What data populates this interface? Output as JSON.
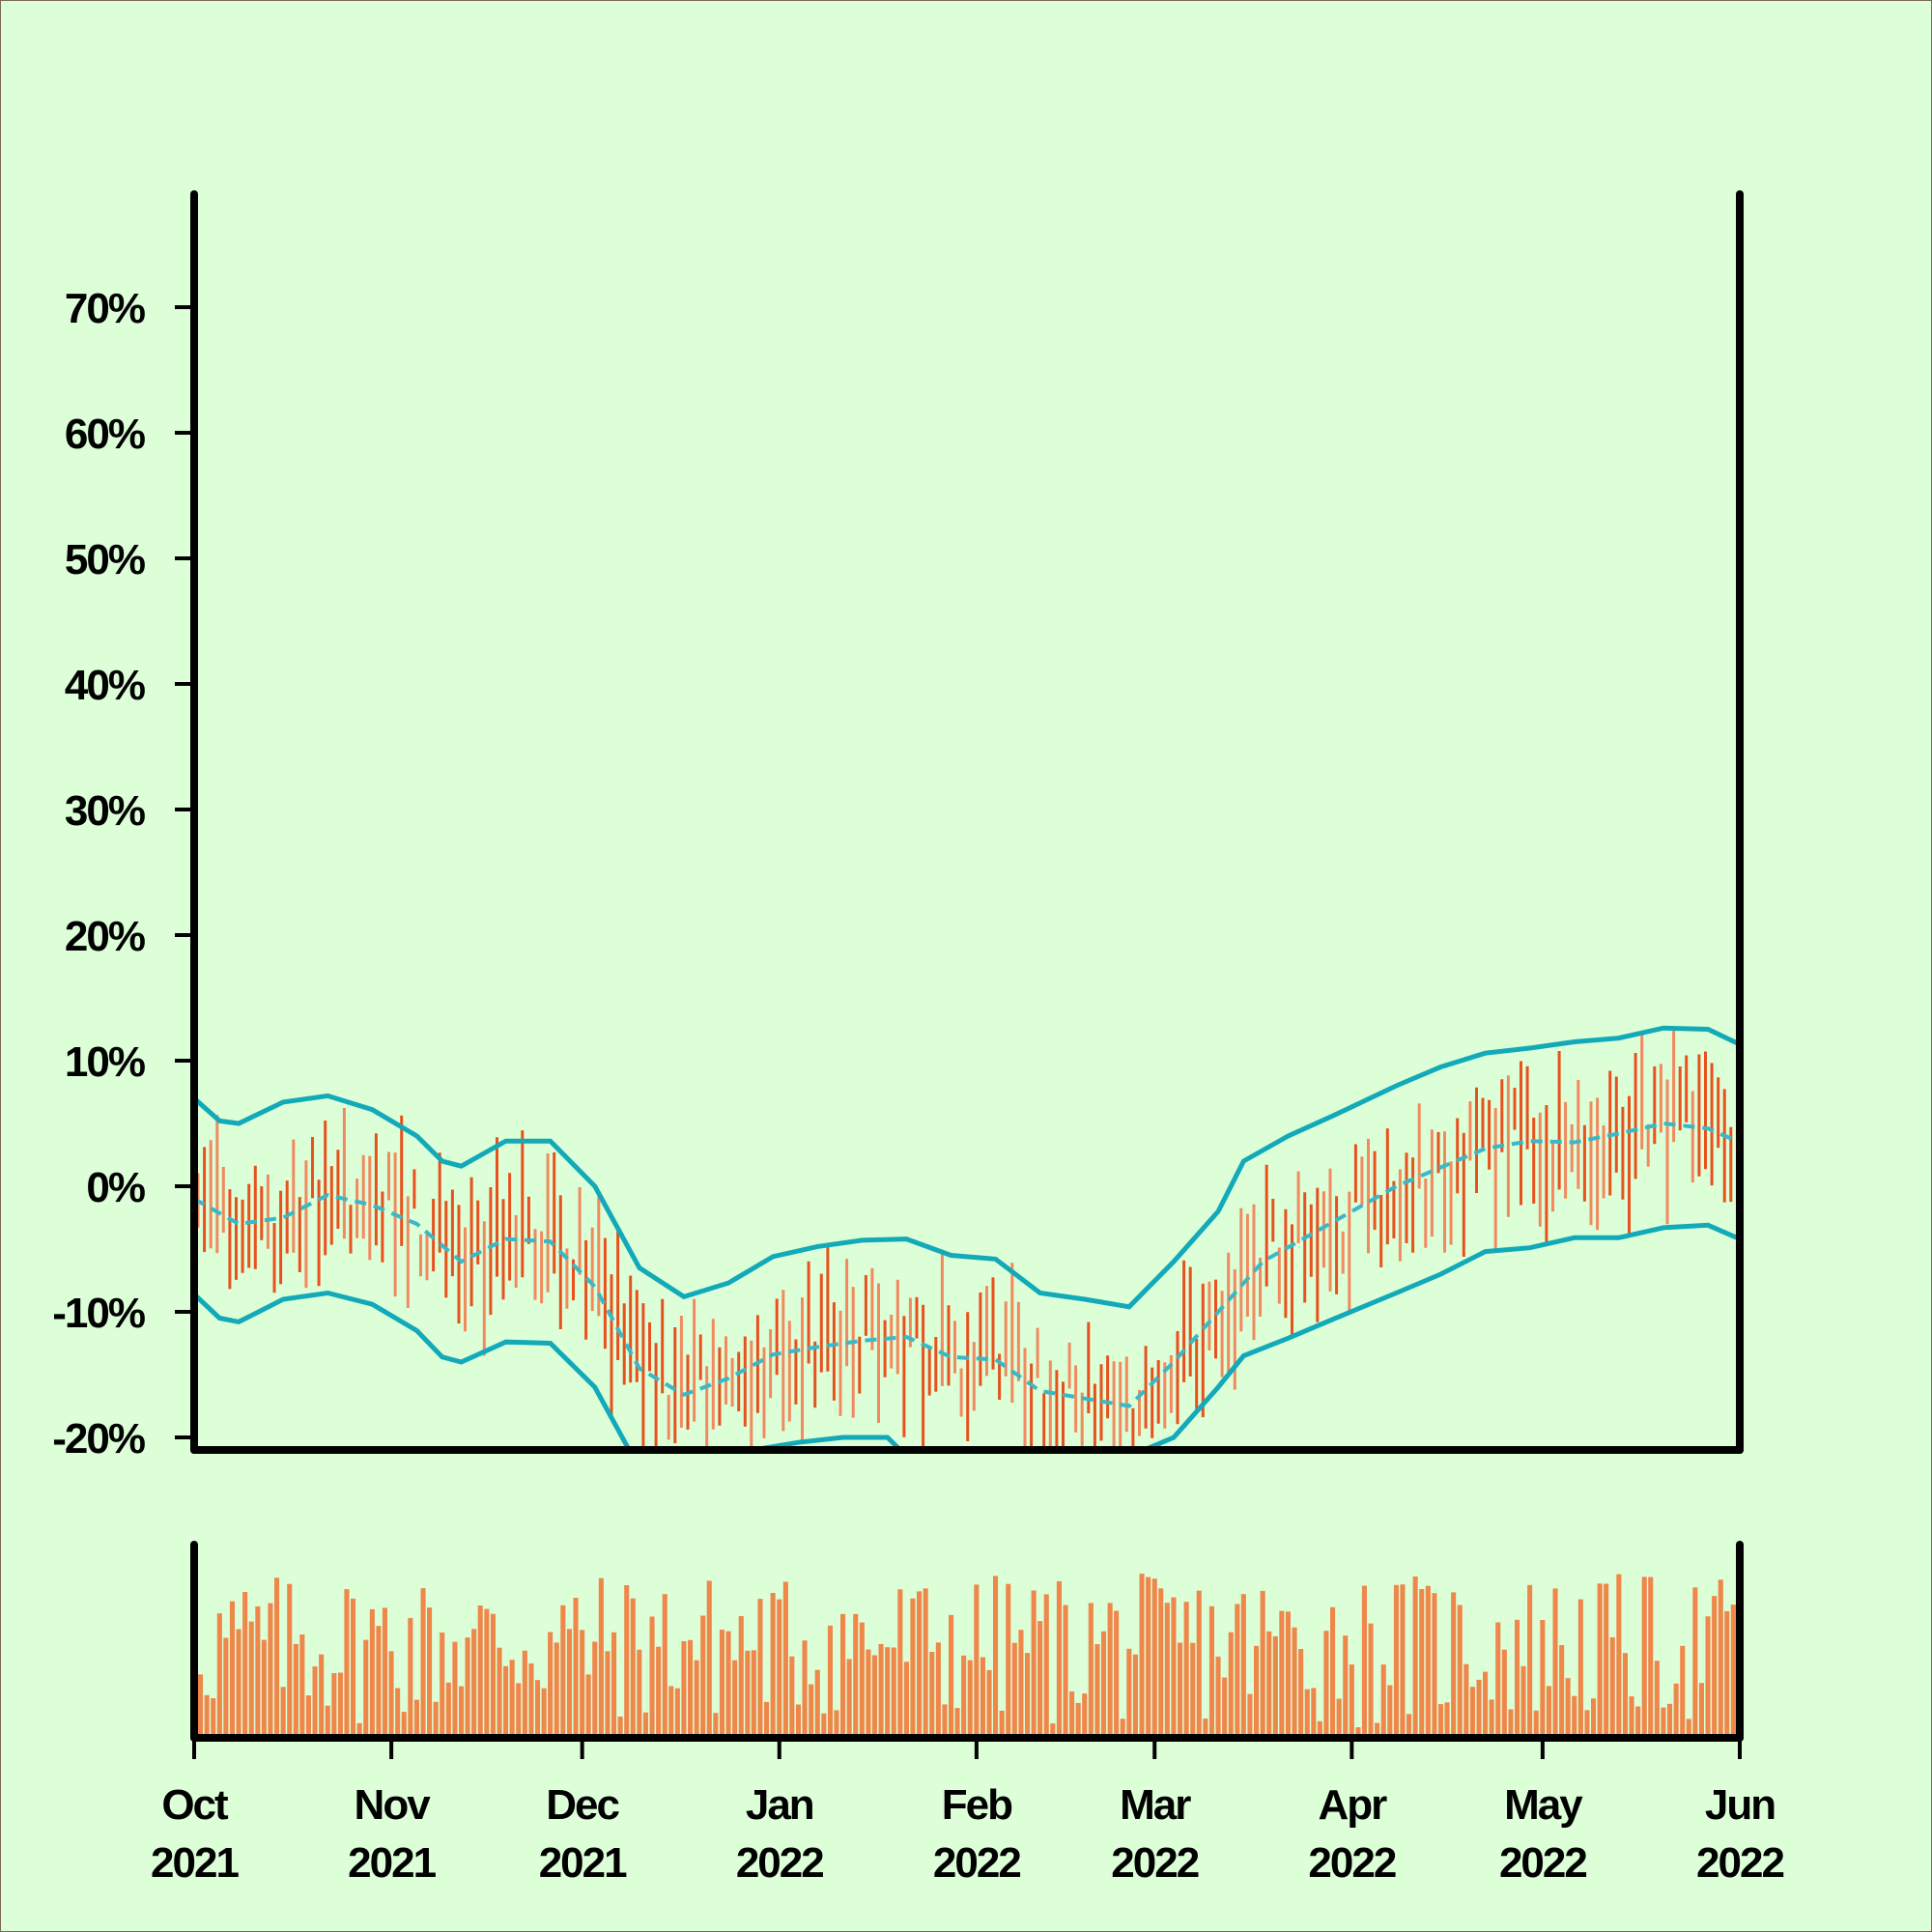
{
  "colors": {
    "background": "#dcffd8",
    "frame": "#7a6a55",
    "axis": "#000000",
    "band": "#12a9b8",
    "mid": "#3ab8c6",
    "candle_dark": "#e8511e",
    "candle_light": "#f2895f",
    "volume": "#ef864a"
  },
  "chart_data": {
    "type": "candlestick",
    "title": "",
    "xlabel": "",
    "ylabel": "",
    "ylim": [
      -21,
      80
    ],
    "yticks": [
      -20,
      -10,
      0,
      10,
      20,
      30,
      40,
      50,
      60,
      70
    ],
    "ytick_labels": [
      "-20%",
      "-10%",
      "0%",
      "10%",
      "20%",
      "30%",
      "40%",
      "50%",
      "60%",
      "70%"
    ],
    "xlim": [
      "2021-10-01",
      "2022-06-01"
    ],
    "xticks": [
      {
        "date": "2021-10-01",
        "line1": "Oct",
        "line2": "2021"
      },
      {
        "date": "2021-11-01",
        "line1": "Nov",
        "line2": "2021"
      },
      {
        "date": "2021-12-01",
        "line1": "Dec",
        "line2": "2021"
      },
      {
        "date": "2022-01-01",
        "line1": "Jan",
        "line2": "2022"
      },
      {
        "date": "2022-02-01",
        "line1": "Feb",
        "line2": "2022"
      },
      {
        "date": "2022-03-01",
        "line1": "Mar",
        "line2": "2022"
      },
      {
        "date": "2022-04-01",
        "line1": "Apr",
        "line2": "2022"
      },
      {
        "date": "2022-05-01",
        "line1": "May",
        "line2": "2022"
      },
      {
        "date": "2022-06-01",
        "line1": "Jun",
        "line2": "2022"
      }
    ],
    "mid_series": {
      "style": "dashed",
      "points": [
        [
          "2021-10-01",
          -1
        ],
        [
          "2021-10-08",
          -3
        ],
        [
          "2021-10-15",
          -2.5
        ],
        [
          "2021-10-22",
          -0.7
        ],
        [
          "2021-10-29",
          -1.5
        ],
        [
          "2021-11-05",
          -3
        ],
        [
          "2021-11-12",
          -6
        ],
        [
          "2021-11-19",
          -4.2
        ],
        [
          "2021-11-26",
          -4.4
        ],
        [
          "2021-12-03",
          -8
        ],
        [
          "2021-12-10",
          -14.5
        ],
        [
          "2021-12-17",
          -16.6
        ],
        [
          "2021-12-24",
          -15.3
        ],
        [
          "2021-12-31",
          -13.4
        ],
        [
          "2022-01-07",
          -12.8
        ],
        [
          "2022-01-14",
          -12.3
        ],
        [
          "2022-01-21",
          -12
        ],
        [
          "2022-01-28",
          -13.6
        ],
        [
          "2022-02-04",
          -13.8
        ],
        [
          "2022-02-11",
          -16.3
        ],
        [
          "2022-02-18",
          -16.9
        ],
        [
          "2022-02-25",
          -17.5
        ],
        [
          "2022-03-04",
          -14
        ],
        [
          "2022-03-11",
          -10
        ],
        [
          "2022-03-18",
          -6
        ],
        [
          "2022-03-25",
          -4
        ],
        [
          "2022-04-01",
          -2
        ],
        [
          "2022-04-08",
          0
        ],
        [
          "2022-04-15",
          1.5
        ],
        [
          "2022-04-22",
          3
        ],
        [
          "2022-04-29",
          3.6
        ],
        [
          "2022-05-06",
          3.5
        ],
        [
          "2022-05-13",
          4.2
        ],
        [
          "2022-05-20",
          5
        ],
        [
          "2022-05-27",
          4.6
        ],
        [
          "2022-06-01",
          3.5
        ]
      ]
    },
    "upper_band": {
      "style": "solid",
      "points": [
        [
          "2021-10-01",
          7
        ],
        [
          "2021-10-05",
          5.2
        ],
        [
          "2021-10-08",
          5
        ],
        [
          "2021-10-15",
          6.7
        ],
        [
          "2021-10-22",
          7.2
        ],
        [
          "2021-10-29",
          6.1
        ],
        [
          "2021-11-05",
          4
        ],
        [
          "2021-11-09",
          2
        ],
        [
          "2021-11-12",
          1.6
        ],
        [
          "2021-11-19",
          3.6
        ],
        [
          "2021-11-26",
          3.6
        ],
        [
          "2021-12-03",
          0
        ],
        [
          "2021-12-10",
          -6.5
        ],
        [
          "2021-12-17",
          -8.8
        ],
        [
          "2021-12-24",
          -7.7
        ],
        [
          "2021-12-31",
          -5.6
        ],
        [
          "2022-01-07",
          -4.8
        ],
        [
          "2022-01-14",
          -4.3
        ],
        [
          "2022-01-21",
          -4.2
        ],
        [
          "2022-01-28",
          -5.5
        ],
        [
          "2022-02-04",
          -5.8
        ],
        [
          "2022-02-11",
          -8.5
        ],
        [
          "2022-02-18",
          -9
        ],
        [
          "2022-02-25",
          -9.6
        ],
        [
          "2022-03-04",
          -6
        ],
        [
          "2022-03-11",
          -2
        ],
        [
          "2022-03-15",
          2
        ],
        [
          "2022-03-22",
          4
        ],
        [
          "2022-03-29",
          5.6
        ],
        [
          "2022-04-08",
          8
        ],
        [
          "2022-04-15",
          9.5
        ],
        [
          "2022-04-22",
          10.6
        ],
        [
          "2022-04-29",
          11
        ],
        [
          "2022-05-06",
          11.5
        ],
        [
          "2022-05-13",
          11.8
        ],
        [
          "2022-05-20",
          12.6
        ],
        [
          "2022-05-27",
          12.5
        ],
        [
          "2022-06-01",
          11.3
        ]
      ]
    },
    "lower_band": {
      "style": "solid",
      "points": [
        [
          "2021-10-01",
          -8.6
        ],
        [
          "2021-10-05",
          -10.5
        ],
        [
          "2021-10-08",
          -10.8
        ],
        [
          "2021-10-15",
          -9
        ],
        [
          "2021-10-22",
          -8.5
        ],
        [
          "2021-10-29",
          -9.4
        ],
        [
          "2021-11-05",
          -11.5
        ],
        [
          "2021-11-09",
          -13.6
        ],
        [
          "2021-11-12",
          -14
        ],
        [
          "2021-11-19",
          -12.4
        ],
        [
          "2021-11-26",
          -12.5
        ],
        [
          "2021-12-03",
          -16
        ],
        [
          "2021-12-10",
          -22.5
        ],
        [
          "2022-01-04",
          -20.4
        ],
        [
          "2022-01-11",
          -20
        ],
        [
          "2022-01-18",
          -20
        ],
        [
          "2022-01-21",
          -21.5
        ],
        [
          "2022-02-25",
          -21.5
        ],
        [
          "2022-03-04",
          -20
        ],
        [
          "2022-03-11",
          -16
        ],
        [
          "2022-03-15",
          -13.5
        ],
        [
          "2022-03-22",
          -12.1
        ],
        [
          "2022-03-29",
          -10.6
        ],
        [
          "2022-04-08",
          -8.5
        ],
        [
          "2022-04-15",
          -7
        ],
        [
          "2022-04-22",
          -5.2
        ],
        [
          "2022-04-29",
          -4.9
        ],
        [
          "2022-05-06",
          -4.1
        ],
        [
          "2022-05-13",
          -4.1
        ],
        [
          "2022-05-20",
          -3.3
        ],
        [
          "2022-05-27",
          -3.1
        ],
        [
          "2022-06-01",
          -4.2
        ]
      ]
    },
    "candles": {
      "note": "one bar per day; wick range approx mid ± 4 to 7",
      "count": 243
    },
    "volume": {
      "count": 243
    }
  }
}
